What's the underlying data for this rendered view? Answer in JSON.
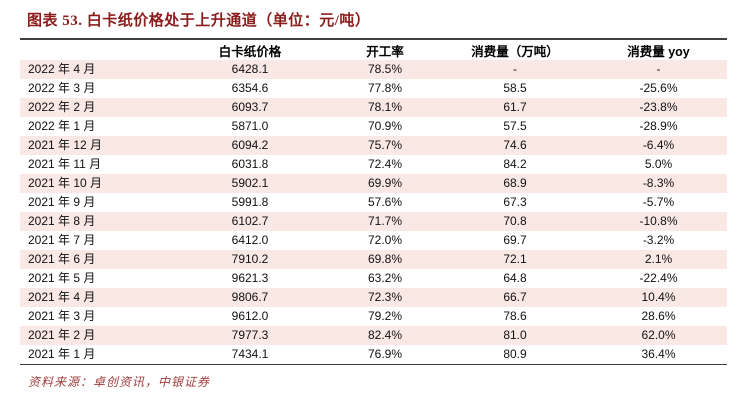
{
  "title": "图表 53. 白卡纸价格处于上升通道（单位：元/吨）",
  "source": "资料来源：卓创资讯，中银证券",
  "colors": {
    "title_color": "#8b1c1c",
    "source_color": "#a03d3d",
    "row_alt": "#f9e8e4",
    "rule_color": "#3f3f3f",
    "text_color": "#111111"
  },
  "table": {
    "headers": [
      "",
      "白卡纸价格",
      "开工率",
      "消费量（万吨）",
      "消费量 yoy"
    ],
    "rows": [
      [
        "2022 年 4 月",
        "6428.1",
        "78.5%",
        "-",
        "-"
      ],
      [
        "2022 年 3 月",
        "6354.6",
        "77.8%",
        "58.5",
        "-25.6%"
      ],
      [
        "2022 年 2 月",
        "6093.7",
        "78.1%",
        "61.7",
        "-23.8%"
      ],
      [
        "2022 年 1 月",
        "5871.0",
        "70.9%",
        "57.5",
        "-28.9%"
      ],
      [
        "2021 年 12 月",
        "6094.2",
        "75.7%",
        "74.6",
        "-6.4%"
      ],
      [
        "2021 年 11 月",
        "6031.8",
        "72.4%",
        "84.2",
        "5.0%"
      ],
      [
        "2021 年 10 月",
        "5902.1",
        "69.9%",
        "68.9",
        "-8.3%"
      ],
      [
        "2021 年 9 月",
        "5991.8",
        "57.6%",
        "67.3",
        "-5.7%"
      ],
      [
        "2021 年 8 月",
        "6102.7",
        "71.7%",
        "70.8",
        "-10.8%"
      ],
      [
        "2021 年 7 月",
        "6412.0",
        "72.0%",
        "69.7",
        "-3.2%"
      ],
      [
        "2021 年 6 月",
        "7910.2",
        "69.8%",
        "72.1",
        "2.1%"
      ],
      [
        "2021 年 5 月",
        "9621.3",
        "63.2%",
        "64.8",
        "-22.4%"
      ],
      [
        "2021 年 4 月",
        "9806.7",
        "72.3%",
        "66.7",
        "10.4%"
      ],
      [
        "2021 年 3 月",
        "9612.0",
        "79.2%",
        "78.6",
        "28.6%"
      ],
      [
        "2021 年 2 月",
        "7977.3",
        "82.4%",
        "81.0",
        "62.0%"
      ],
      [
        "2021 年 1 月",
        "7434.1",
        "76.9%",
        "80.9",
        "36.4%"
      ]
    ]
  }
}
